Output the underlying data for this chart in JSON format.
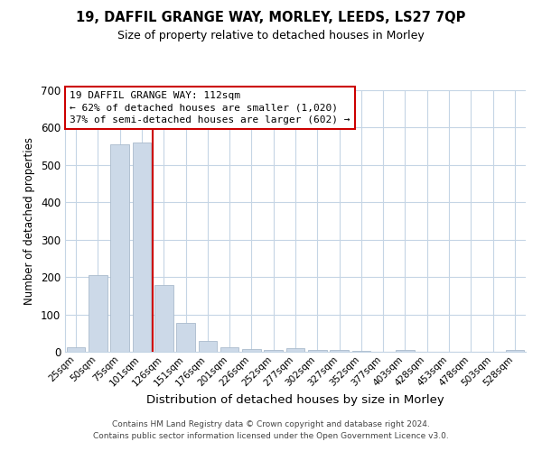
{
  "title1": "19, DAFFIL GRANGE WAY, MORLEY, LEEDS, LS27 7QP",
  "title2": "Size of property relative to detached houses in Morley",
  "xlabel": "Distribution of detached houses by size in Morley",
  "ylabel": "Number of detached properties",
  "bar_labels": [
    "25sqm",
    "50sqm",
    "75sqm",
    "101sqm",
    "126sqm",
    "151sqm",
    "176sqm",
    "201sqm",
    "226sqm",
    "252sqm",
    "277sqm",
    "302sqm",
    "327sqm",
    "352sqm",
    "377sqm",
    "403sqm",
    "428sqm",
    "453sqm",
    "478sqm",
    "503sqm",
    "528sqm"
  ],
  "bar_values": [
    12,
    205,
    555,
    560,
    178,
    78,
    30,
    12,
    8,
    5,
    10,
    5,
    5,
    3,
    0,
    5,
    0,
    0,
    0,
    0,
    5
  ],
  "bar_color": "#ccd9e8",
  "bar_edge_color": "#aabbcc",
  "ylim": [
    0,
    700
  ],
  "yticks": [
    0,
    100,
    200,
    300,
    400,
    500,
    600,
    700
  ],
  "vline_color": "#cc0000",
  "vline_x": 3.5,
  "annotation_title": "19 DAFFIL GRANGE WAY: 112sqm",
  "annotation_line1": "← 62% of detached houses are smaller (1,020)",
  "annotation_line2": "37% of semi-detached houses are larger (602) →",
  "annotation_box_color": "#ffffff",
  "annotation_box_edge": "#cc0000",
  "footer1": "Contains HM Land Registry data © Crown copyright and database right 2024.",
  "footer2": "Contains public sector information licensed under the Open Government Licence v3.0.",
  "background_color": "#ffffff",
  "grid_color": "#c5d5e5"
}
